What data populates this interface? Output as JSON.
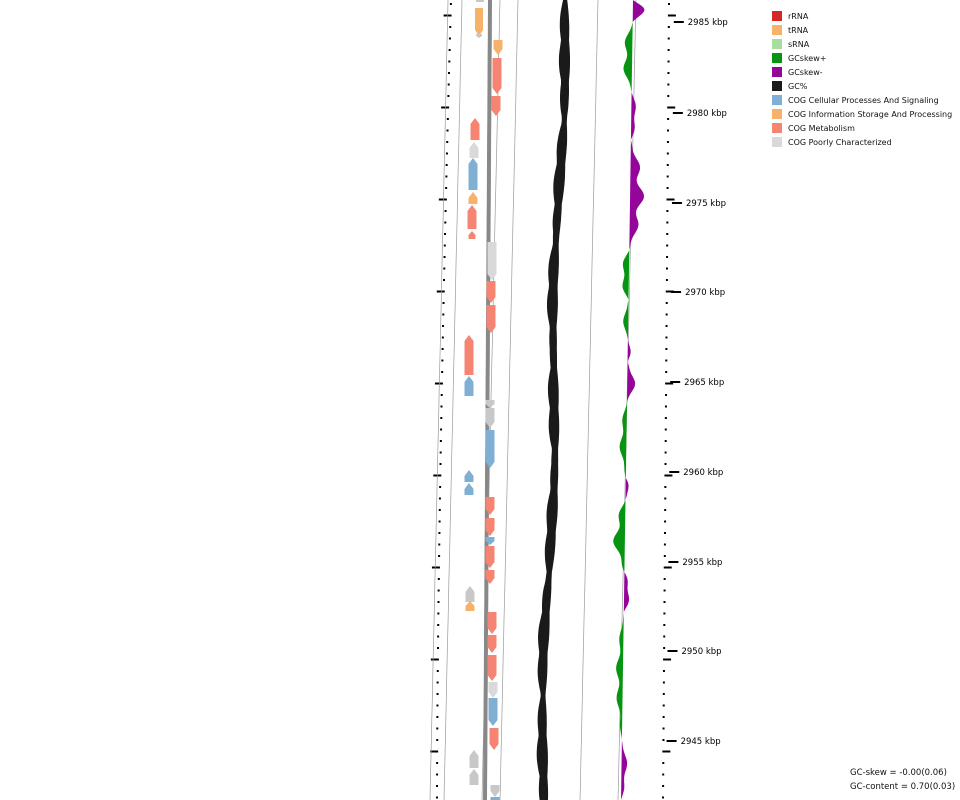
{
  "legend": [
    {
      "label": "rRNA",
      "color": "#d62728"
    },
    {
      "label": "tRNA",
      "color": "#f7b26a"
    },
    {
      "label": "sRNA",
      "color": "#a8dda0"
    },
    {
      "label": "GCskew+",
      "color": "#079410"
    },
    {
      "label": "GCskew-",
      "color": "#94069a"
    },
    {
      "label": "GC%",
      "color": "#1a1a1a"
    },
    {
      "label": "COG Cellular Processes And Signaling",
      "color": "#7fafd2"
    },
    {
      "label": "COG Information Storage And Processing",
      "color": "#f7b26a"
    },
    {
      "label": "COG Metabolism",
      "color": "#f58473"
    },
    {
      "label": "COG Poorly Characterized",
      "color": "#d9d9d9"
    }
  ],
  "scale_labels": [
    "2985 kbp",
    "2980 kbp",
    "2975 kbp",
    "2970 kbp",
    "2965 kbp",
    "2960 kbp",
    "2955 kbp",
    "2950 kbp",
    "2945 kbp"
  ],
  "stats": {
    "gc_skew": "GC-skew = -0.00(0.06)",
    "gc_content": "GC-content = 0.70(0.03)"
  },
  "colors": {
    "gc_content": "#1a1a1a",
    "gc_skew_pos": "#079410",
    "gc_skew_neg": "#94069a",
    "backbone": "#888888",
    "unknown_feature": "#c8c8c8"
  }
}
